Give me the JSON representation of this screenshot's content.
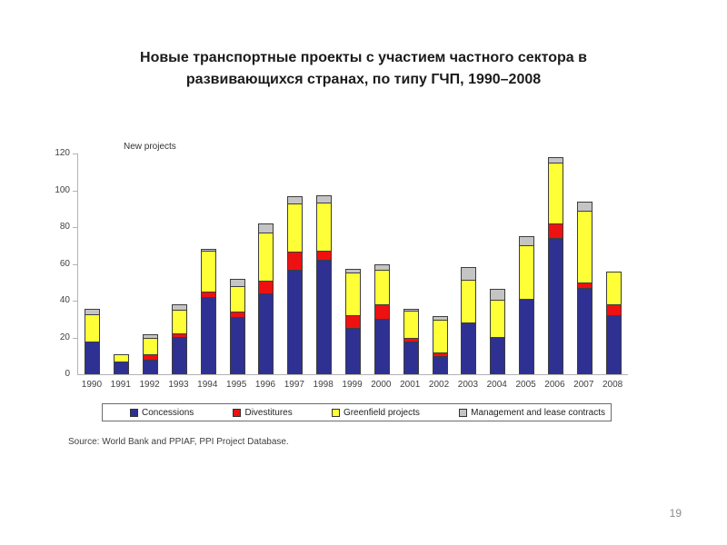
{
  "title": {
    "line1": "Новые транспортные проекты с участием частного сектора в",
    "line2": "развивающихся странах, по типу ГЧП, 1990–2008"
  },
  "source": "Source: World Bank and PPIAF, PPI Project Database.",
  "page_number": "19",
  "colors": {
    "concessions": "#2e3192",
    "divestitures": "#ee1111",
    "greenfield": "#ffff38",
    "management": "#c4c4c4",
    "axis": "#b3b3b3"
  },
  "chart_data": {
    "type": "bar",
    "stacked": true,
    "title": "Новые транспортные проекты с участием частного сектора в развивающихся странах, по типу ГЧП, 1990–2008",
    "ylabel": "New projects",
    "xlabel": "",
    "grid": false,
    "legend_position": "bottom",
    "ylim": [
      0,
      120
    ],
    "yticks": [
      0,
      20,
      40,
      60,
      80,
      100,
      120
    ],
    "categories": [
      "1990",
      "1991",
      "1992",
      "1993",
      "1994",
      "1995",
      "1996",
      "1997",
      "1998",
      "1999",
      "2000",
      "2001",
      "2002",
      "2003",
      "2004",
      "2005",
      "2006",
      "2007",
      "2008"
    ],
    "series": [
      {
        "name": "Concessions",
        "color": "#2e3192",
        "values": [
          18,
          7,
          8,
          20,
          42,
          31,
          44,
          57,
          62,
          25,
          30,
          18,
          10,
          28,
          20,
          41,
          74,
          47,
          32
        ]
      },
      {
        "name": "Divestitures",
        "color": "#ee1111",
        "values": [
          0,
          0,
          3,
          2,
          3,
          3,
          7,
          10,
          5,
          7,
          8,
          2,
          2,
          0,
          0,
          0,
          8,
          3,
          6
        ]
      },
      {
        "name": "Greenfield projects",
        "color": "#ffff38",
        "values": [
          15,
          4,
          9,
          13,
          22,
          14,
          26,
          26,
          26,
          23,
          19,
          15,
          18,
          23,
          20,
          29,
          33,
          39,
          18
        ]
      },
      {
        "name": "Management and lease contracts",
        "color": "#c4c4c4",
        "values": [
          3,
          0,
          2,
          3,
          1,
          4,
          5,
          4,
          4,
          2,
          3,
          1,
          2,
          7,
          6,
          5,
          3,
          5,
          0
        ]
      }
    ],
    "totals": [
      36,
      11,
      22,
      38,
      68,
      52,
      82,
      97,
      97,
      57,
      60,
      36,
      32,
      58,
      46,
      75,
      118,
      94,
      56
    ]
  }
}
